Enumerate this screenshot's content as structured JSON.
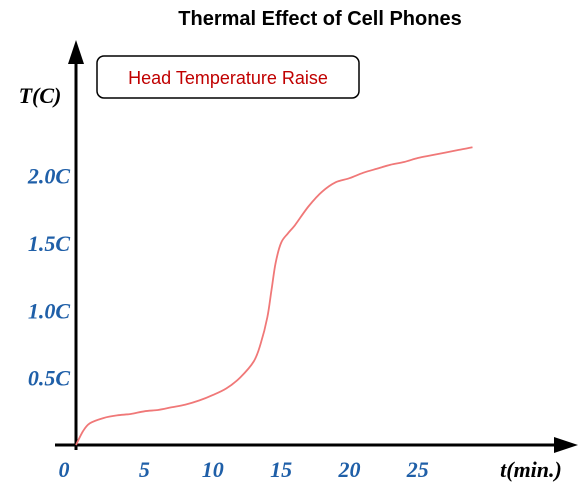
{
  "chart_data": {
    "type": "line",
    "title": "Thermal Effect of Cell Phones",
    "legend": {
      "label": "Head Temperature Raise",
      "placement": "top-left"
    },
    "xlabel": "t(min.)",
    "ylabel": "T(C)",
    "x_ticks": [
      {
        "value": 0,
        "label": "0"
      },
      {
        "value": 5,
        "label": "5"
      },
      {
        "value": 10,
        "label": "10"
      },
      {
        "value": 15,
        "label": "15"
      },
      {
        "value": 20,
        "label": "20"
      },
      {
        "value": 25,
        "label": "25"
      }
    ],
    "y_ticks": [
      {
        "value": 0.5,
        "label": "0.5C"
      },
      {
        "value": 1.0,
        "label": "1.0C"
      },
      {
        "value": 1.5,
        "label": "1.5C"
      },
      {
        "value": 2.0,
        "label": "2.0C"
      }
    ],
    "xlim": [
      0,
      30
    ],
    "ylim": [
      0,
      2.6
    ],
    "grid": false,
    "colors": {
      "line": "#f07878",
      "axis": "#000000",
      "ticks": "#1f5fa8",
      "legend_text": "#c00000"
    },
    "series": [
      {
        "x": [
          0,
          0.5,
          1,
          2,
          3,
          4,
          5,
          6,
          7,
          8,
          9,
          10,
          11,
          12,
          13,
          13.5,
          14,
          14.3,
          14.6,
          15,
          15.5,
          16,
          17,
          18,
          19,
          20,
          21,
          22,
          23,
          24,
          25,
          26,
          27,
          28,
          29
        ],
        "y": [
          0,
          0.1,
          0.16,
          0.2,
          0.22,
          0.23,
          0.25,
          0.26,
          0.28,
          0.3,
          0.33,
          0.37,
          0.42,
          0.5,
          0.62,
          0.75,
          0.95,
          1.15,
          1.35,
          1.5,
          1.57,
          1.63,
          1.77,
          1.88,
          1.95,
          1.98,
          2.02,
          2.05,
          2.08,
          2.1,
          2.13,
          2.15,
          2.17,
          2.19,
          2.21
        ]
      }
    ]
  }
}
